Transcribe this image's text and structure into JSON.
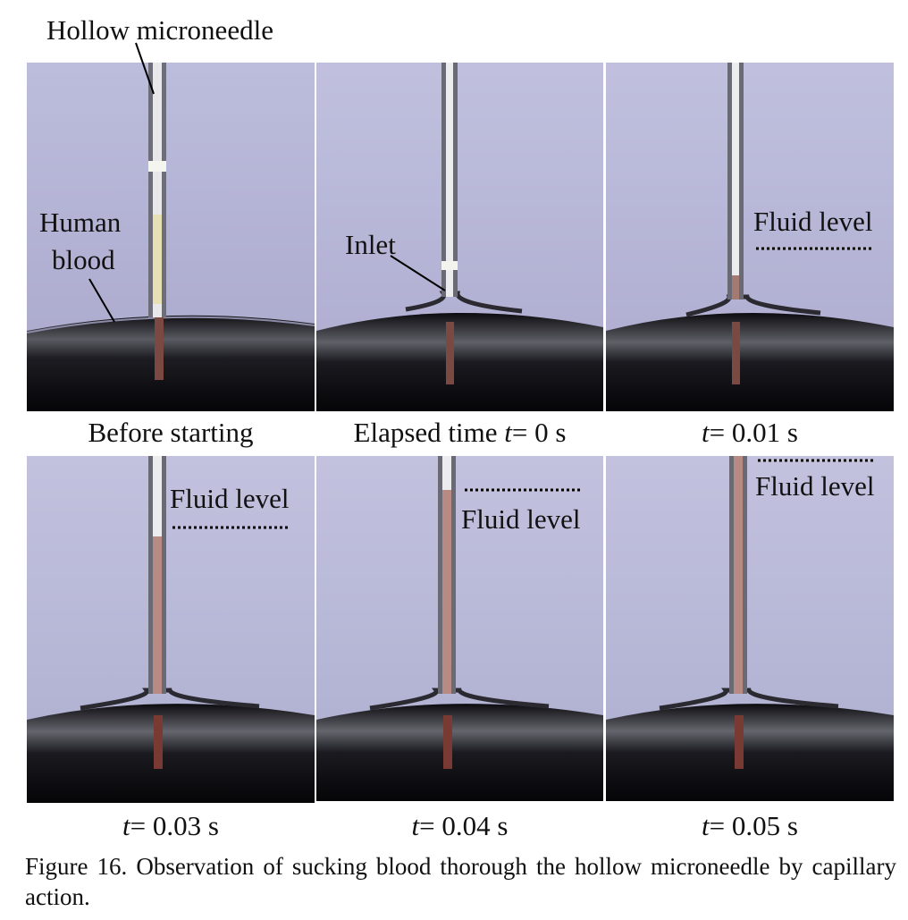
{
  "figure": {
    "caption": "Figure 16. Observation of sucking blood thorough the hollow microneedle by capillary action."
  },
  "annotations": {
    "hollow_microneedle": "Hollow microneedle",
    "human": "Human",
    "blood": "blood",
    "inlet": "Inlet",
    "fluid_level": "Fluid level"
  },
  "panels": [
    {
      "caption_text": "Before starting",
      "fill_level": 0
    },
    {
      "caption_pre": "Elapsed time ",
      "caption_var": "t",
      "caption_post": "= 0 s",
      "fill_level": 0.0
    },
    {
      "caption_var": "t",
      "caption_post": "= 0.01 s",
      "fill_level": 0.05
    },
    {
      "caption_var": "t",
      "caption_post": "= 0.03 s",
      "fill_level": 0.66
    },
    {
      "caption_var": "t",
      "caption_post": "= 0.04 s",
      "fill_level": 0.82
    },
    {
      "caption_var": "t",
      "caption_post": "= 0.05 s",
      "fill_level": 1.0
    }
  ],
  "colors": {
    "background": "#b7b6d6",
    "blood": "#9a5a5a",
    "drop": "#1a1a1e"
  }
}
